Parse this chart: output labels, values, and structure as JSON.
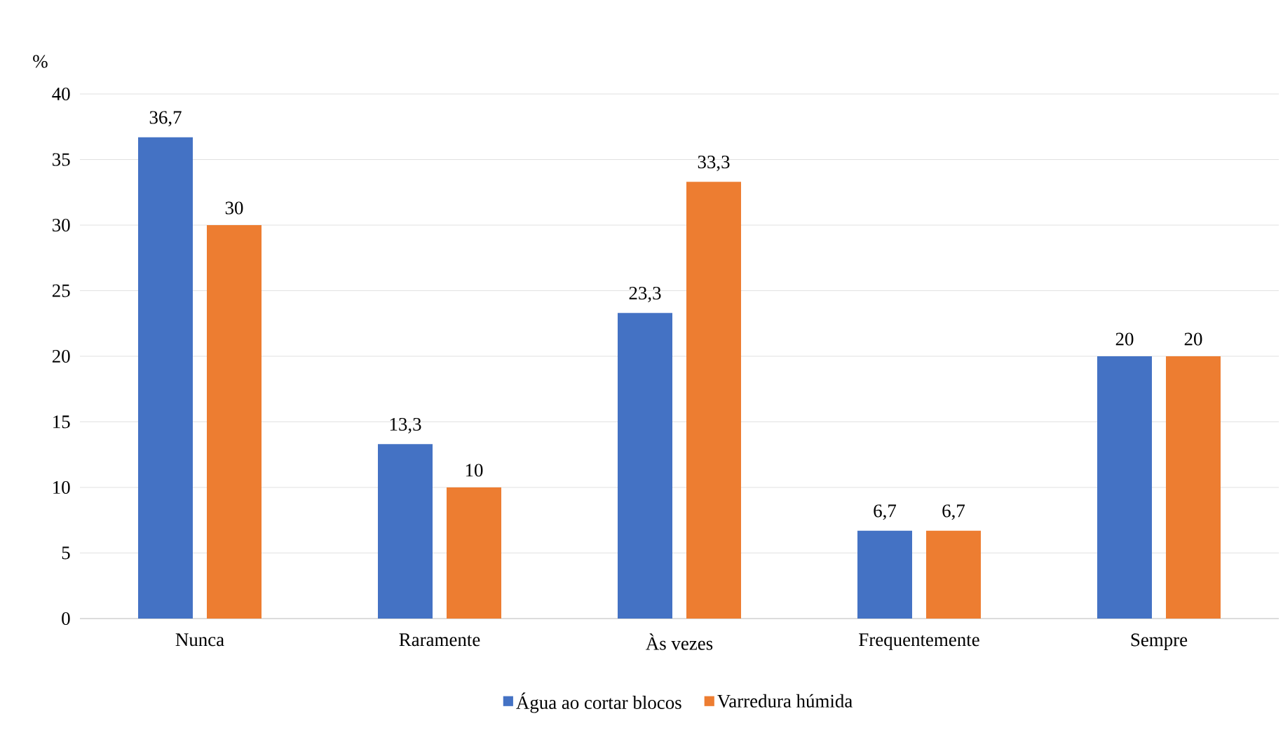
{
  "chart_data": {
    "type": "bar",
    "ylabel": "%",
    "categories": [
      "Nunca",
      "Raramente",
      "Às vezes",
      "Frequentemente",
      "Sempre"
    ],
    "series": [
      {
        "name": "Água ao cortar blocos",
        "color": "#4472c4",
        "values": [
          36.7,
          13.3,
          23.3,
          6.7,
          20
        ],
        "value_labels": [
          "36,7",
          "13,3",
          "23,3",
          "6,7",
          "20"
        ]
      },
      {
        "name": "Varredura húmida",
        "color": "#ed7d31",
        "values": [
          30,
          10,
          33.3,
          6.7,
          20
        ],
        "value_labels": [
          "30",
          "10",
          "33,3",
          "6,7",
          "20"
        ]
      }
    ],
    "ylim": [
      0,
      40
    ],
    "yticks": [
      0,
      5,
      10,
      15,
      20,
      25,
      30,
      35,
      40
    ],
    "grid": "y",
    "legend": "bottom"
  }
}
